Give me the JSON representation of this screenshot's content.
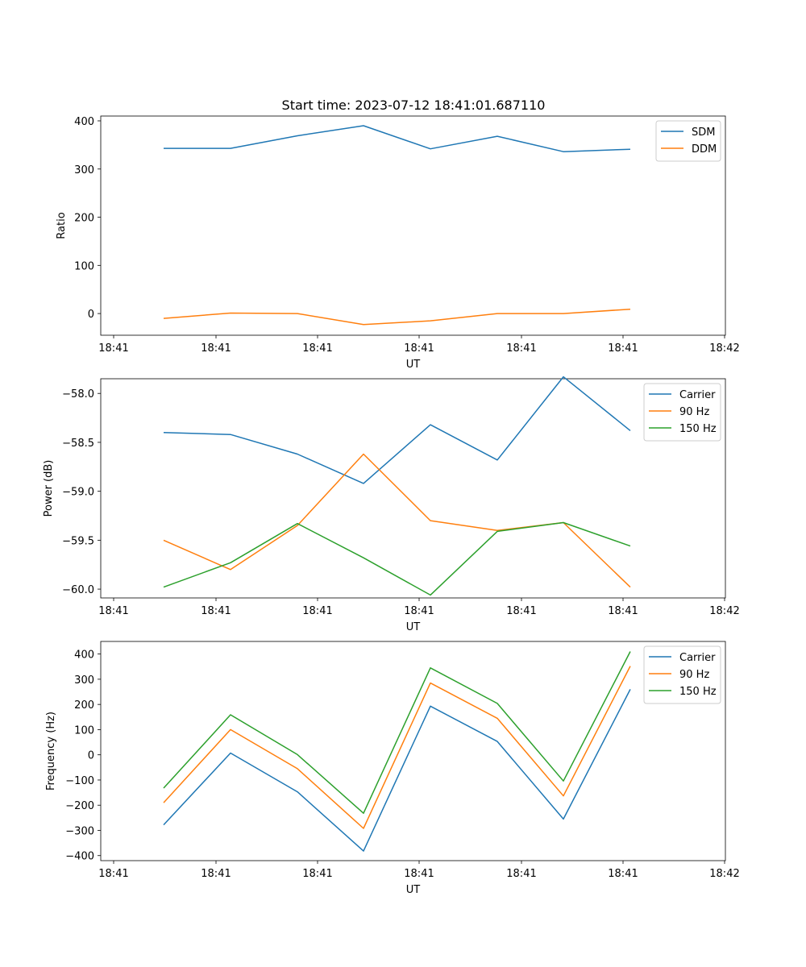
{
  "title": "Start time: 2023-07-12 18:41:01.687110",
  "colors": {
    "c0": "#1f77b4",
    "c1": "#ff7f0e",
    "c2": "#2ca02c"
  },
  "chart_data": [
    {
      "type": "line",
      "xlabel": "UT",
      "ylabel": "Ratio",
      "x_tick_labels": [
        "18:41",
        "18:41",
        "18:41",
        "18:41",
        "18:41",
        "18:41",
        "18:42"
      ],
      "y_ticks": [
        0,
        100,
        200,
        300,
        400
      ],
      "y_tick_labels": [
        "0",
        "100",
        "200",
        "300",
        "400"
      ],
      "ylim": [
        -45,
        410
      ],
      "legend_location": "top-right",
      "series": [
        {
          "name": "SDM",
          "color": "#1f77b4",
          "values": [
            343,
            343,
            369,
            390,
            342,
            368,
            336,
            341
          ]
        },
        {
          "name": "DDM",
          "color": "#ff7f0e",
          "values": [
            -10,
            1,
            0,
            -23,
            -15,
            0,
            0,
            9
          ]
        }
      ]
    },
    {
      "type": "line",
      "xlabel": "UT",
      "ylabel": "Power (dB)",
      "x_tick_labels": [
        "18:41",
        "18:41",
        "18:41",
        "18:41",
        "18:41",
        "18:41",
        "18:42"
      ],
      "y_ticks": [
        -60.0,
        -59.5,
        -59.0,
        -58.5,
        -58.0
      ],
      "y_tick_labels": [
        "−60.0",
        "−59.5",
        "−59.0",
        "−58.5",
        "−58.0"
      ],
      "ylim": [
        -60.09,
        -57.85
      ],
      "legend_location": "top-right",
      "series": [
        {
          "name": "Carrier",
          "color": "#1f77b4",
          "values": [
            -58.4,
            -58.42,
            -58.62,
            -58.92,
            -58.32,
            -58.68,
            -57.83,
            -58.38
          ]
        },
        {
          "name": "90 Hz",
          "color": "#ff7f0e",
          "values": [
            -59.5,
            -59.8,
            -59.35,
            -58.62,
            -59.3,
            -59.4,
            -59.32,
            -59.98
          ]
        },
        {
          "name": "150 Hz",
          "color": "#2ca02c",
          "values": [
            -59.98,
            -59.73,
            -59.33,
            -59.68,
            -60.06,
            -59.41,
            -59.32,
            -59.56
          ]
        }
      ]
    },
    {
      "type": "line",
      "xlabel": "UT",
      "ylabel": "Frequency (Hz)",
      "x_tick_labels": [
        "18:41",
        "18:41",
        "18:41",
        "18:41",
        "18:41",
        "18:41",
        "18:42"
      ],
      "y_ticks": [
        -400,
        -300,
        -200,
        -100,
        0,
        100,
        200,
        300,
        400
      ],
      "y_tick_labels": [
        "−400",
        "−300",
        "−200",
        "−100",
        "0",
        "100",
        "200",
        "300",
        "400"
      ],
      "ylim": [
        -420,
        450
      ],
      "legend_location": "top-right",
      "series": [
        {
          "name": "Carrier",
          "color": "#1f77b4",
          "values": [
            -278,
            7,
            -147,
            -382,
            193,
            53,
            -255,
            260
          ]
        },
        {
          "name": "90 Hz",
          "color": "#ff7f0e",
          "values": [
            -190,
            100,
            -55,
            -292,
            285,
            145,
            -163,
            352
          ]
        },
        {
          "name": "150 Hz",
          "color": "#2ca02c",
          "values": [
            -132,
            159,
            1,
            -232,
            345,
            204,
            -104,
            410
          ]
        }
      ]
    }
  ]
}
